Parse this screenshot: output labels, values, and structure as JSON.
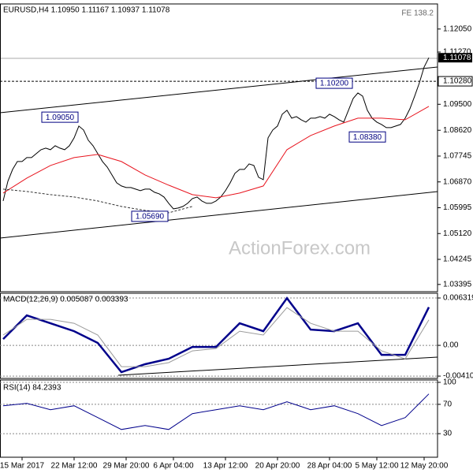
{
  "watermark": "ActionForex.com",
  "fe_label": "FE 138.2",
  "chart_data": [
    {
      "type": "line",
      "title": "EURUSD,H4  1.10950 1.11167 1.10937 1.11078",
      "categories": [
        null,
        null,
        null,
        null,
        "15 Mar 2017",
        null,
        null,
        null,
        null,
        null,
        null,
        null,
        null,
        null,
        null,
        "22 Mar 12:00",
        null,
        null,
        null,
        null,
        null,
        null,
        null,
        null,
        null,
        null,
        "29 Mar 20:00",
        null,
        null,
        null,
        null,
        null,
        null,
        null,
        null,
        null,
        "6 Apr 04:00",
        null,
        null,
        null,
        null,
        null,
        null,
        null,
        null,
        null,
        null,
        "13 Apr 12:00",
        null,
        null,
        null,
        null,
        null,
        null,
        null,
        null,
        null,
        null,
        "20 Apr 20:00",
        null,
        null,
        null,
        null,
        null,
        null,
        null,
        null,
        null,
        null,
        "28 Apr 04:00",
        null,
        null,
        null,
        null,
        null,
        null,
        null,
        null,
        null,
        "5 May 12:00",
        null,
        null,
        null,
        null,
        null,
        null,
        null,
        null,
        null,
        "12 May 20:00",
        null
      ],
      "series": [
        {
          "color": "#000000",
          "values": [
            1.06225,
            1.06893,
            1.07293,
            1.0756,
            1.0756,
            1.07694,
            1.07694,
            1.07827,
            1.07961,
            1.08014,
            1.07961,
            1.08094,
            1.08014,
            1.07961,
            1.08094,
            1.08361,
            1.08762,
            1.08628,
            1.08281,
            1.08094,
            1.07827,
            1.0756,
            1.07373,
            1.07106,
            1.06839,
            1.06732,
            1.06679,
            1.06679,
            1.06626,
            1.06572,
            1.06626,
            1.06626,
            1.06519,
            1.06465,
            1.06359,
            1.06145,
            1.05958,
            1.05985,
            1.06038,
            1.06145,
            1.06305,
            1.06359,
            1.06225,
            1.06145,
            1.06145,
            1.06225,
            1.06359,
            1.06572,
            1.06839,
            1.0716,
            1.07293,
            1.07293,
            1.0748,
            1.07427,
            1.07026,
            1.06946,
            1.08361,
            1.08628,
            1.08762,
            1.09162,
            1.09296,
            1.09029,
            1.09082,
            1.08975,
            1.08895,
            1.09029,
            1.09029,
            1.09082,
            1.09029,
            1.09162,
            1.09082,
            1.08975,
            1.08895,
            1.09296,
            1.09696,
            1.09883,
            1.09776,
            1.09296,
            1.09029,
            1.08895,
            1.08815,
            1.08708,
            1.08708,
            1.08762,
            1.08815,
            1.09029,
            1.09349,
            1.09776,
            1.1023,
            1.10764,
            1.11078
          ]
        },
        {
          "color": "#e8141e",
          "x": [
            0,
            5,
            10,
            15,
            20,
            25,
            30,
            35,
            40,
            45,
            50,
            55,
            60,
            65,
            70,
            75,
            80,
            85,
            90
          ],
          "values": [
            1.06492,
            1.06999,
            1.07427,
            1.07694,
            1.078,
            1.0756,
            1.07106,
            1.06759,
            1.06439,
            1.06332,
            1.06492,
            1.06732,
            1.07961,
            1.08441,
            1.08762,
            1.09029,
            1.09029,
            1.08975,
            1.09429
          ]
        },
        {
          "color": "#333333",
          "dashed": true,
          "x": [
            0,
            5,
            10,
            15,
            20,
            25,
            30,
            35,
            40
          ],
          "values": [
            1.06626,
            1.06545,
            1.06439,
            1.06359,
            1.06225,
            1.06038,
            1.05905,
            1.05825,
            1.06038
          ]
        }
      ],
      "ylim": [
        1.0315,
        1.129
      ],
      "yticks": [
        {
          "value": 1.1205,
          "label": "1.12050"
        },
        {
          "value": 1.1127,
          "label": "1.11270"
        },
        {
          "value": 1.095,
          "label": "1.09500"
        },
        {
          "value": 1.0862,
          "label": "1.08620"
        },
        {
          "value": 1.07745,
          "label": "1.07745"
        },
        {
          "value": 1.0687,
          "label": "1.06870"
        },
        {
          "value": 1.05995,
          "label": "1.05995"
        },
        {
          "value": 1.0512,
          "label": "1.05120"
        },
        {
          "value": 1.04245,
          "label": "1.04245"
        },
        {
          "value": 1.03395,
          "label": "1.03395"
        }
      ],
      "level": {
        "value": 1.1028,
        "label": "1.10280"
      },
      "last_price": {
        "value": 1.11078,
        "label": "1.11078"
      },
      "annotations": [
        {
          "x": 12,
          "value": 1.0905,
          "label": "1.09050"
        },
        {
          "x": 70,
          "value": 1.102,
          "label": "1.10200"
        },
        {
          "x": 77,
          "value": 1.0838,
          "label": "1.08380"
        },
        {
          "x": 31,
          "value": 1.0569,
          "label": "1.05690"
        }
      ],
      "grid": false
    },
    {
      "type": "line",
      "title": "MACD(12,26,9) 0.005087 0.003393",
      "series": [
        {
          "color": "#00008b",
          "width": 2.5,
          "x": [
            0,
            5,
            10,
            15,
            20,
            25,
            30,
            35,
            40,
            45,
            50,
            55,
            60,
            65,
            70,
            75,
            80,
            85,
            90
          ],
          "values": [
            0.00084,
            0.00399,
            0.00294,
            0.00189,
            0.00032,
            -0.00357,
            -0.00252,
            -0.00179,
            -0.00021,
            -0.00021,
            0.00294,
            0.00189,
            0.0063,
            0.0021,
            0.00189,
            0.00294,
            -0.00126,
            -0.00126,
            0.005087
          ]
        },
        {
          "color": "#9a9a9a",
          "width": 1,
          "x": [
            0,
            5,
            10,
            15,
            20,
            25,
            30,
            35,
            40,
            45,
            50,
            55,
            60,
            65,
            70,
            75,
            80,
            85,
            90
          ],
          "values": [
            0.00137,
            0.00347,
            0.00347,
            0.00294,
            0.00137,
            -0.00284,
            -0.00284,
            -0.00231,
            -0.00074,
            -0.00042,
            0.00189,
            0.00137,
            0.00504,
            0.00294,
            0.00189,
            0.00189,
            -0.00074,
            -0.00179,
            0.003393
          ]
        }
      ],
      "ylim": [
        -0.00441,
        0.00695
      ],
      "yticks": [
        0.006319,
        {
          "value": 0,
          "label": "0.00"
        },
        -0.004102
      ],
      "grid": true
    },
    {
      "type": "line",
      "title": "RSI(14) 84.2393",
      "series": [
        {
          "color": "#00008b",
          "width": 1,
          "x": [
            0,
            5,
            10,
            15,
            20,
            25,
            30,
            35,
            40,
            45,
            50,
            55,
            60,
            65,
            70,
            75,
            80,
            85,
            90
          ],
          "values": [
            68.1,
            71.4,
            62.7,
            68.1,
            51.9,
            35.7,
            41.1,
            35.7,
            57.3,
            62.7,
            68.1,
            62.7,
            73.5,
            62.7,
            68.1,
            57.3,
            41.1,
            51.9,
            84.2393
          ]
        }
      ],
      "ylim": [
        0,
        100
      ],
      "yticks": [
        30,
        70,
        100
      ],
      "grid": true
    }
  ]
}
